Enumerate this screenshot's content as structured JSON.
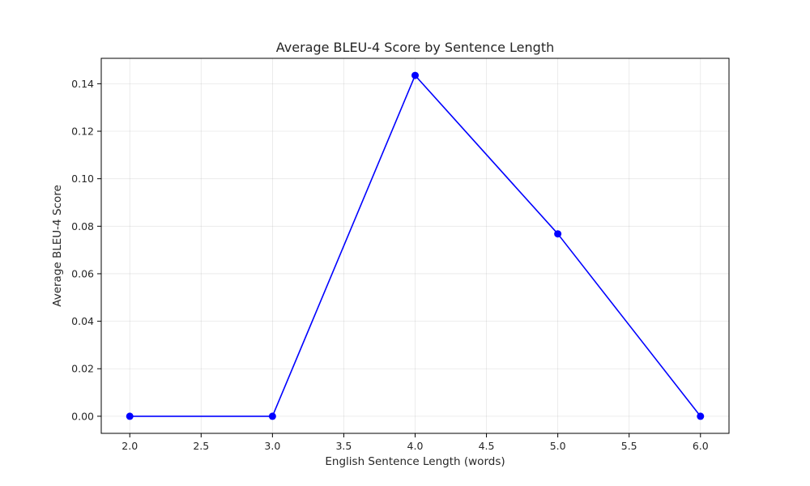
{
  "chart_data": {
    "type": "line",
    "title": "Average BLEU-4 Score by Sentence Length",
    "xlabel": "English Sentence Length (words)",
    "ylabel": "Average BLEU-4 Score",
    "xlim": [
      1.8,
      6.2
    ],
    "ylim": [
      -0.0072,
      0.1507
    ],
    "x_ticks": [
      2.0,
      2.5,
      3.0,
      3.5,
      4.0,
      4.5,
      5.0,
      5.5,
      6.0
    ],
    "x_tick_labels": [
      "2.0",
      "2.5",
      "3.0",
      "3.5",
      "4.0",
      "4.5",
      "5.0",
      "5.5",
      "6.0"
    ],
    "y_ticks": [
      0.0,
      0.02,
      0.04,
      0.06,
      0.08,
      0.1,
      0.12,
      0.14
    ],
    "y_tick_labels": [
      "0.00",
      "0.02",
      "0.04",
      "0.06",
      "0.08",
      "0.10",
      "0.12",
      "0.14"
    ],
    "grid": true,
    "series": [
      {
        "x": [
          2,
          3,
          4,
          5,
          6
        ],
        "values": [
          0.0,
          0.0,
          0.1435,
          0.0768,
          0.0
        ],
        "color": "#0000ff",
        "marker": "circle"
      }
    ]
  }
}
